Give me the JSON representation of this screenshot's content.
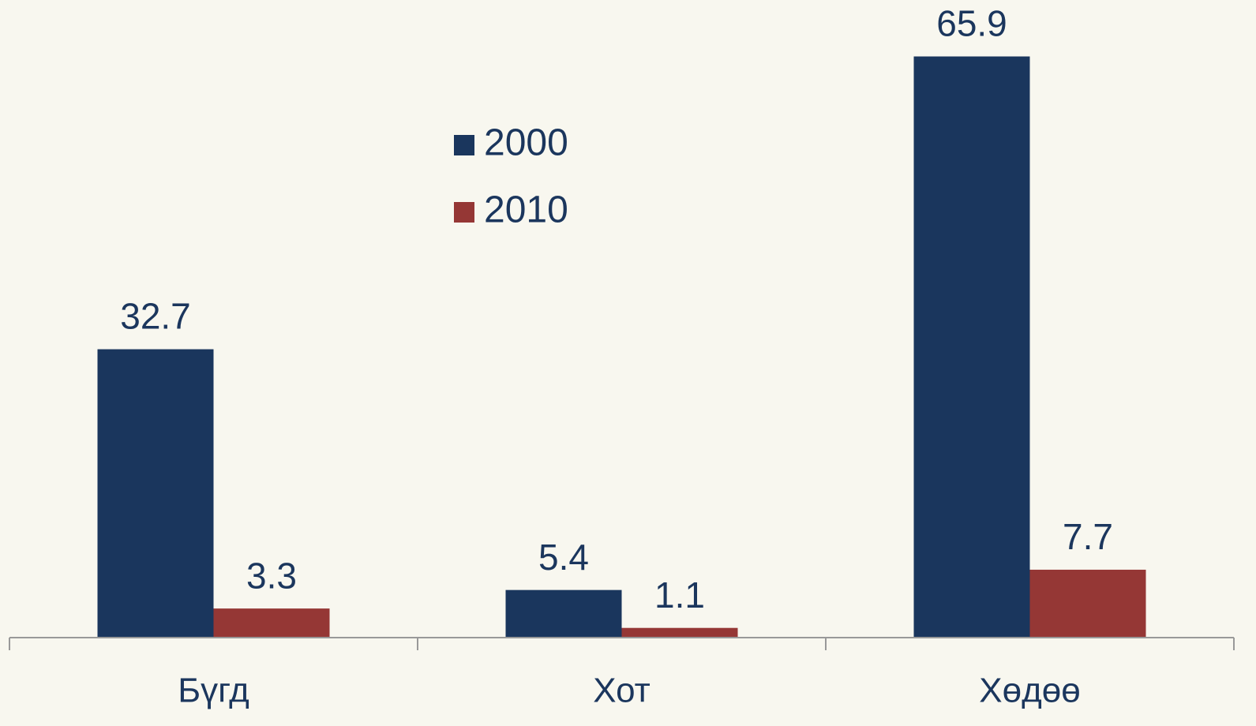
{
  "chart_data": {
    "type": "bar",
    "categories": [
      "Бүгд",
      "Хот",
      "Хөдөө"
    ],
    "series": [
      {
        "name": "2000",
        "color": "#1a365d",
        "values": [
          32.7,
          5.4,
          65.9
        ]
      },
      {
        "name": "2010",
        "color": "#953735",
        "values": [
          3.3,
          1.1,
          7.7
        ]
      }
    ],
    "ylim": [
      0,
      72.3
    ]
  }
}
